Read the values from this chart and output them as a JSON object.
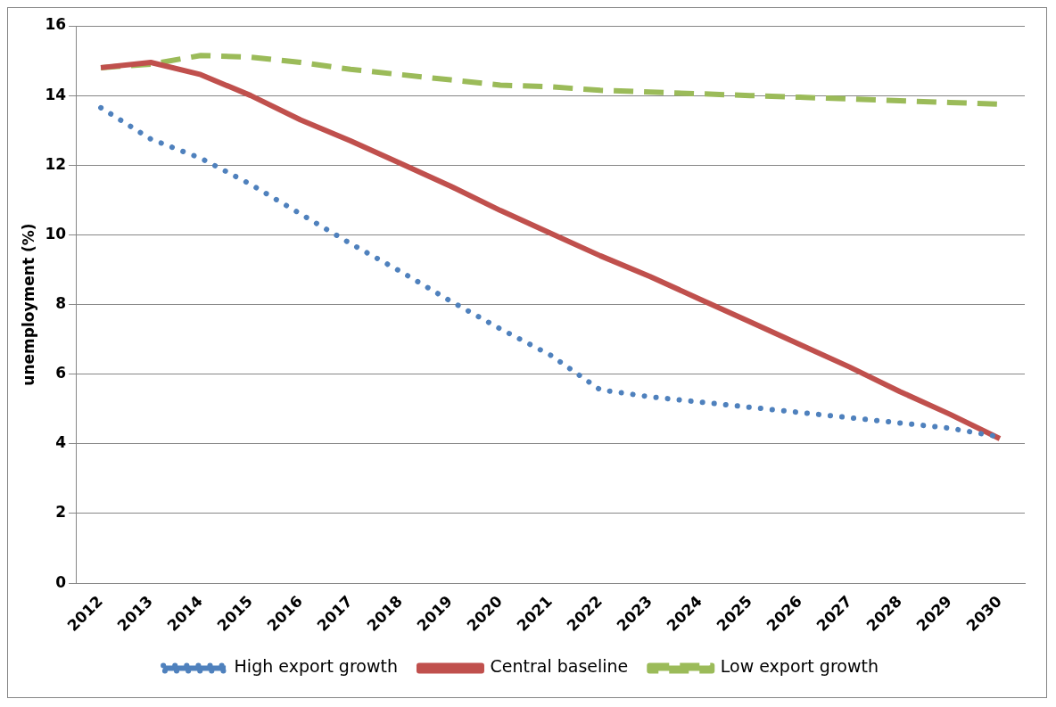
{
  "chart_data": {
    "type": "line",
    "ylabel": "unemployment (%)",
    "categories": [
      "2012",
      "2013",
      "2014",
      "2015",
      "2016",
      "2017",
      "2018",
      "2019",
      "2020",
      "2021",
      "2022",
      "2023",
      "2024",
      "2025",
      "2026",
      "2027",
      "2028",
      "2029",
      "2030"
    ],
    "series": [
      {
        "name": "High export growth",
        "color": "#4f81bd",
        "line_style": "dotted",
        "values": [
          13.65,
          12.75,
          12.2,
          11.45,
          10.6,
          9.75,
          8.95,
          8.1,
          7.3,
          6.55,
          5.55,
          5.35,
          5.2,
          5.05,
          4.9,
          4.75,
          4.6,
          4.45,
          4.2
        ]
      },
      {
        "name": "Central baseline",
        "color": "#c0504d",
        "line_style": "solid",
        "values": [
          14.8,
          14.95,
          14.6,
          14.0,
          13.3,
          12.7,
          12.05,
          11.4,
          10.7,
          10.05,
          9.4,
          8.8,
          8.15,
          7.5,
          6.85,
          6.2,
          5.5,
          4.85,
          4.15
        ]
      },
      {
        "name": "Low export growth",
        "color": "#9bbb59",
        "line_style": "dashed",
        "values": [
          14.8,
          14.9,
          15.15,
          15.1,
          14.95,
          14.75,
          14.6,
          14.45,
          14.3,
          14.25,
          14.15,
          14.1,
          14.05,
          14.0,
          13.95,
          13.9,
          13.85,
          13.8,
          13.75
        ]
      }
    ],
    "ylim": [
      0,
      16
    ],
    "yticks": [
      0,
      2,
      4,
      6,
      8,
      10,
      12,
      14,
      16
    ],
    "grid": "y",
    "legend": "bottom",
    "marker": "none"
  }
}
